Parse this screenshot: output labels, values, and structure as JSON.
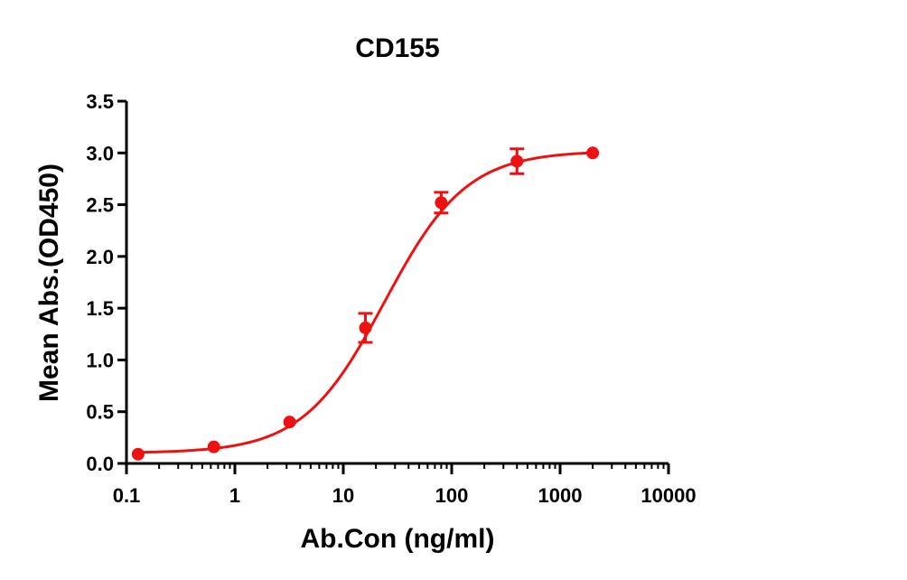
{
  "chart_data": {
    "type": "scatter",
    "title": "CD155",
    "xlabel": "Ab.Con (ng/ml)",
    "ylabel": "Mean Abs.(OD450)",
    "xscale": "log",
    "xlim": [
      0.1,
      10000
    ],
    "ylim": [
      0,
      3.5
    ],
    "xticks": [
      0.1,
      1,
      10,
      100,
      1000,
      10000
    ],
    "xtick_labels": [
      "0.1",
      "1",
      "10",
      "100",
      "1000",
      "10000"
    ],
    "yticks": [
      0,
      0.5,
      1.0,
      1.5,
      2.0,
      2.5,
      3.0,
      3.5
    ],
    "ytick_labels": [
      "0.0",
      "0.5",
      "1.0",
      "1.5",
      "2.0",
      "2.5",
      "3.0",
      "3.5"
    ],
    "grid": false,
    "legend": "none",
    "color": "#ee1111",
    "series": [
      {
        "x": [
          0.128,
          0.64,
          3.2,
          16,
          80,
          400,
          2000
        ],
        "y": [
          0.09,
          0.16,
          0.4,
          1.31,
          2.52,
          2.92,
          3.0
        ],
        "error": [
          0.0,
          0.0,
          0.0,
          0.14,
          0.1,
          0.12,
          0.0
        ],
        "fit": "4PL"
      }
    ]
  }
}
